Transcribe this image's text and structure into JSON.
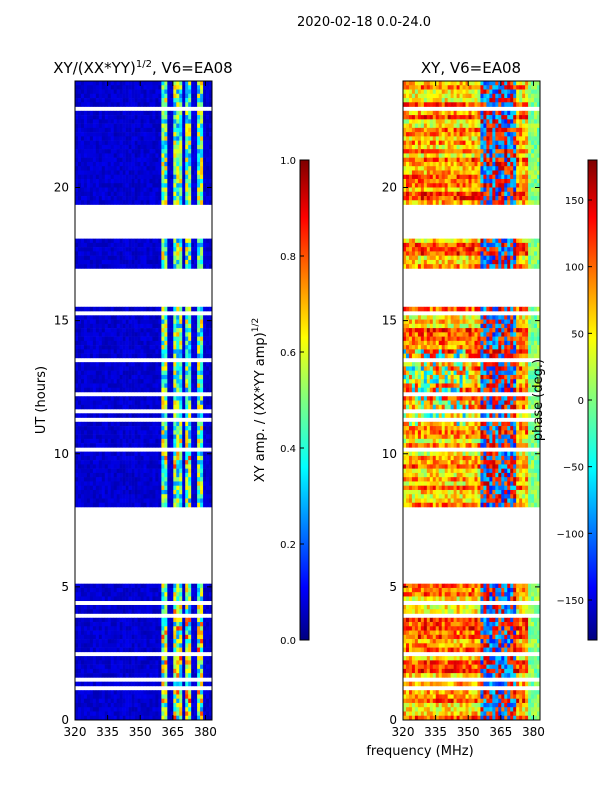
{
  "figure_title": "2020-02-18 0.0-24.0",
  "xlabel": "frequency (MHz)",
  "ylabel": "UT (hours)",
  "panels": {
    "left": {
      "title_main": "XY/(XX*YY)",
      "title_sup": "1/2",
      "title_rest": ", V6=EA08"
    },
    "right": {
      "title": "XY, V6=EA08"
    }
  },
  "colorbars": {
    "amplitude": {
      "label_main": "XY amp. / (XX*YY amp)",
      "label_sup": "1/2"
    },
    "phase": {
      "label": "phase (deg.)"
    }
  },
  "colors": {
    "jet": [
      "#00007f",
      "#0000ff",
      "#007fff",
      "#00ffff",
      "#7fff7f",
      "#ffff00",
      "#ff7f00",
      "#ff0000",
      "#7f0000"
    ],
    "axis": "#000000",
    "background": "#ffffff"
  },
  "chart_data": [
    {
      "type": "heatmap",
      "panel": "left",
      "title": "XY/(XX*YY)^1/2, V6=EA08",
      "xlabel": "frequency (MHz)",
      "ylabel": "UT (hours)",
      "xlim": [
        320,
        383
      ],
      "ylim": [
        0,
        24
      ],
      "xticks": [
        320,
        335,
        350,
        365,
        380
      ],
      "yticks": [
        0,
        5,
        10,
        15,
        20
      ],
      "colorbar": {
        "label": "XY amp. / (XX*YY amp)^1/2",
        "range": [
          0.0,
          1.0
        ],
        "ticks": [
          "0.0",
          "0.2",
          "0.4",
          "0.6",
          "0.8",
          "1.0"
        ]
      },
      "gap_hours": [
        [
          19.3,
          18.1
        ],
        [
          17.0,
          15.5
        ],
        [
          8.0,
          5.3
        ]
      ],
      "rfi_bands_mhz": [
        [
          360,
          363
        ],
        [
          365,
          369
        ],
        [
          371,
          374
        ],
        [
          376,
          379
        ]
      ]
    },
    {
      "type": "heatmap",
      "panel": "right",
      "title": "XY, V6=EA08",
      "xlabel": "frequency (MHz)",
      "ylabel": "UT (hours)",
      "xlim": [
        320,
        383
      ],
      "ylim": [
        0,
        24
      ],
      "xticks": [
        320,
        335,
        350,
        365,
        380
      ],
      "yticks": [
        0,
        5,
        10,
        15,
        20
      ],
      "colorbar": {
        "label": "phase (deg.)",
        "range": [
          -180,
          180
        ],
        "ticks": [
          "-150",
          "-100",
          "-50",
          "0",
          "50",
          "100",
          "150"
        ]
      }
    }
  ]
}
